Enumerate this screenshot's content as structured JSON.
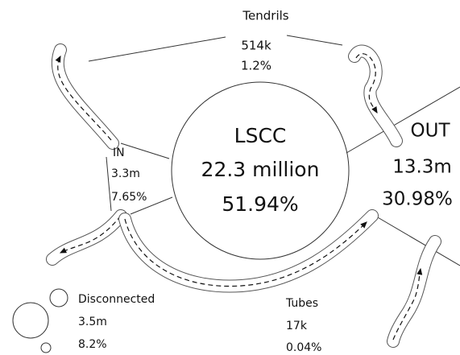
{
  "nodes": [
    {
      "label": "Tendrils",
      "size": "514k",
      "share": "1.2%"
    },
    {
      "label": "LSCC",
      "size": "22.3 million",
      "share": "51.94%"
    },
    {
      "label": "OUT",
      "size": "13.3m",
      "share": "30.98%"
    },
    {
      "label": "IN",
      "size": "3.3m",
      "share": "7.65%"
    },
    {
      "label": "Disconnected",
      "size": "3.5m",
      "share": "8.2%"
    },
    {
      "label": "Tubes",
      "size": "17k",
      "share": "0.04%"
    }
  ]
}
